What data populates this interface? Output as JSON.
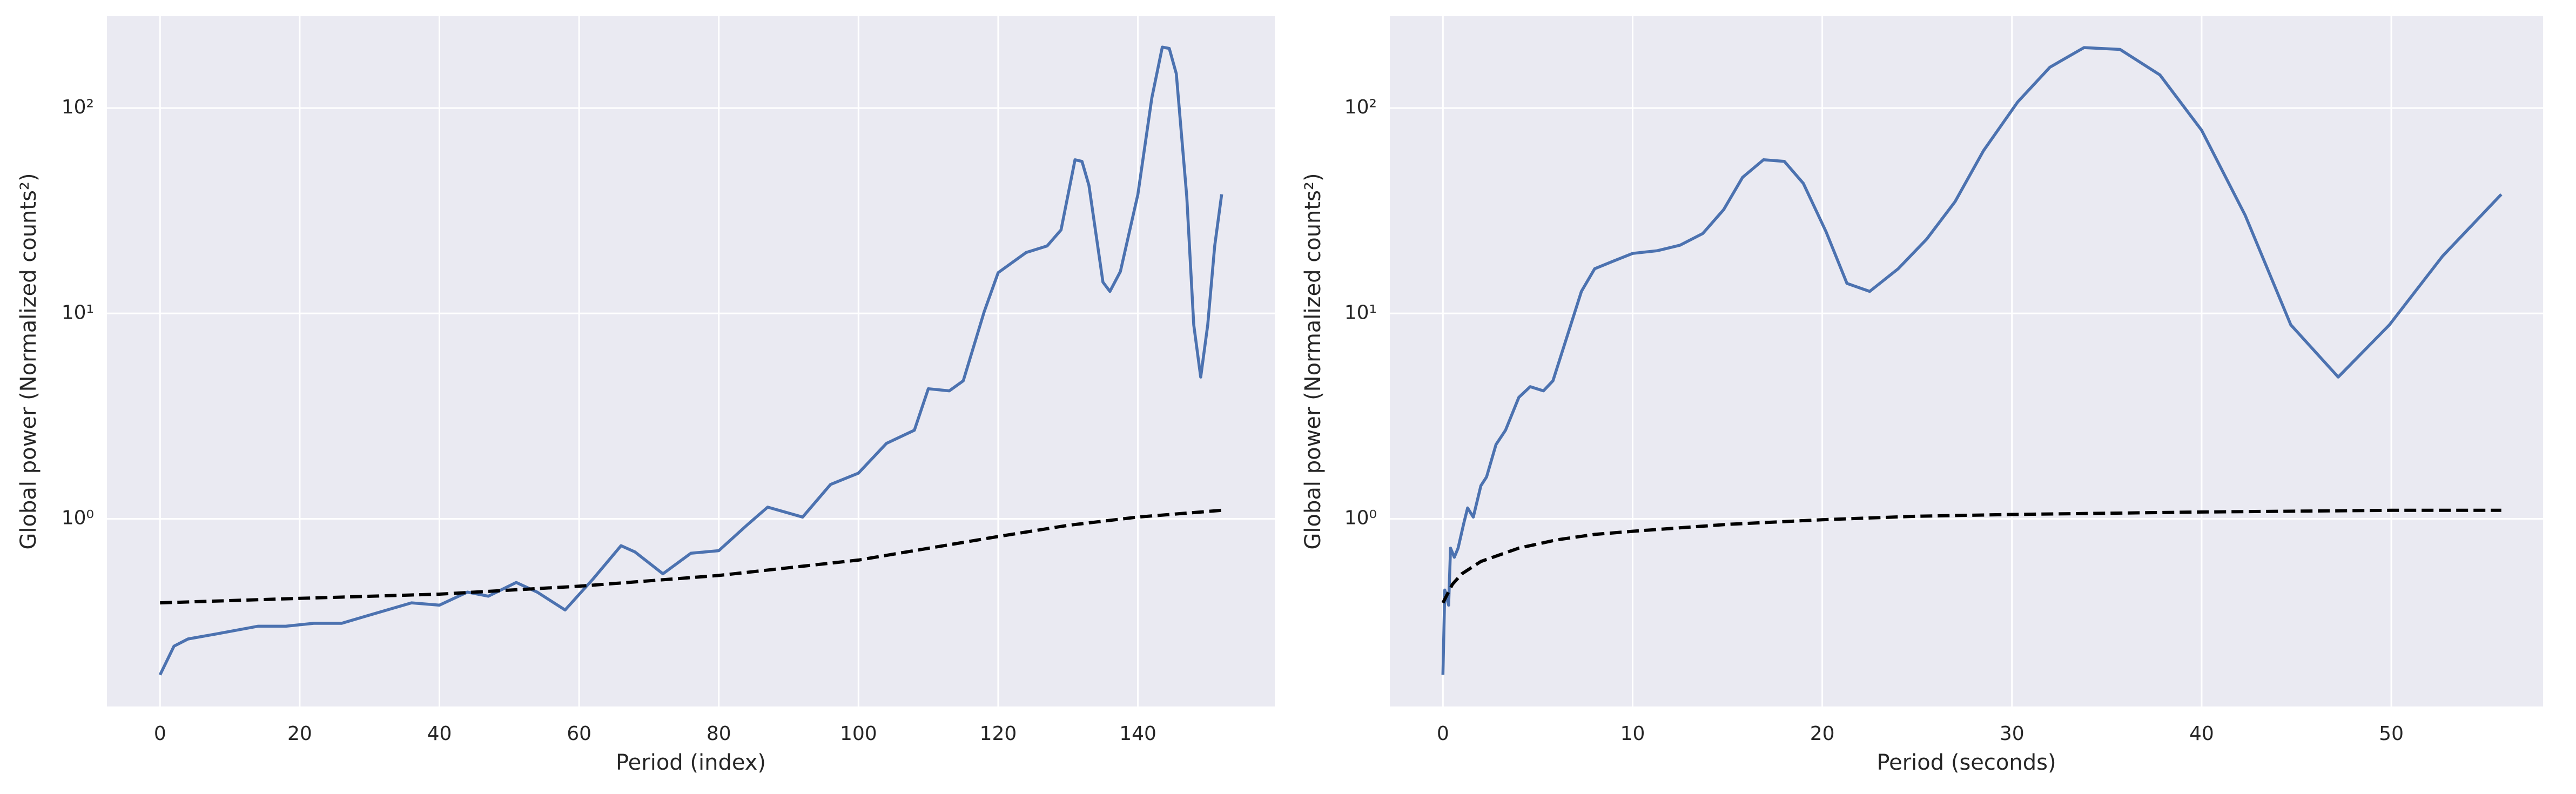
{
  "chart_data": [
    {
      "type": "line",
      "xlabel": "Period (index)",
      "ylabel": "Global power (Normalized counts²)",
      "yscale": "log",
      "grid": true,
      "background": "#eaeaf2",
      "xlim": [
        -7.6,
        159.6
      ],
      "xticks": [
        0,
        20,
        40,
        60,
        80,
        100,
        120,
        140
      ],
      "ylim": [
        0.122,
        280
      ],
      "yticks": [
        {
          "value": 1,
          "label": "10⁰"
        },
        {
          "value": 10,
          "label": "10¹"
        },
        {
          "value": 100,
          "label": "10²"
        }
      ],
      "series": [
        {
          "color": "#4c72b0",
          "dash": "solid",
          "x": [
            0,
            2,
            4,
            8,
            14,
            18,
            22,
            26,
            30,
            36,
            40,
            44,
            47,
            51,
            54,
            58,
            62,
            66,
            68,
            72,
            76,
            80,
            84,
            87,
            92,
            96,
            100,
            104,
            108,
            110,
            113,
            115,
            118,
            120,
            124,
            127,
            129,
            131,
            132,
            133,
            135,
            136,
            137.5,
            140,
            142,
            143.5,
            144.5,
            145.5,
            147,
            148,
            149,
            150,
            151,
            152
          ],
          "values": [
            0.174,
            0.24,
            0.26,
            0.275,
            0.3,
            0.3,
            0.31,
            0.31,
            0.34,
            0.39,
            0.38,
            0.44,
            0.42,
            0.49,
            0.44,
            0.36,
            0.51,
            0.74,
            0.69,
            0.54,
            0.68,
            0.7,
            0.93,
            1.14,
            1.02,
            1.47,
            1.67,
            2.33,
            2.7,
            4.3,
            4.2,
            4.7,
            10.2,
            15.8,
            19.8,
            21.3,
            25.5,
            56,
            55,
            42,
            14.2,
            12.8,
            16,
            38,
            112,
            198,
            195,
            147,
            37,
            8.8,
            4.9,
            8.8,
            21.3,
            38
          ]
        },
        {
          "color": "#000000",
          "dash": "dashed",
          "x": [
            0,
            20,
            40,
            60,
            80,
            100,
            120,
            130,
            140,
            152
          ],
          "values": [
            0.39,
            0.41,
            0.43,
            0.47,
            0.53,
            0.63,
            0.82,
            0.93,
            1.02,
            1.1
          ]
        }
      ]
    },
    {
      "type": "line",
      "xlabel": "Period (seconds)",
      "ylabel": "Global power (Normalized counts²)",
      "yscale": "log",
      "grid": true,
      "background": "#eaeaf2",
      "xlim": [
        -2.8,
        58.0
      ],
      "xticks": [
        0,
        10,
        20,
        30,
        40,
        50
      ],
      "ylim": [
        0.122,
        280
      ],
      "yticks": [
        {
          "value": 1,
          "label": "10⁰"
        },
        {
          "value": 10,
          "label": "10¹"
        },
        {
          "value": 100,
          "label": "10²"
        }
      ],
      "series": [
        {
          "color": "#4c72b0",
          "dash": "solid",
          "x": [
            0,
            0.1,
            0.3,
            0.4,
            0.6,
            0.8,
            1.1,
            1.3,
            1.6,
            2.0,
            2.3,
            2.8,
            3.3,
            4.0,
            4.6,
            5.3,
            5.8,
            6.5,
            7.3,
            8.0,
            9.0,
            10.0,
            11.3,
            12.5,
            13.7,
            14.8,
            15.8,
            16.9,
            18.0,
            19.0,
            20.2,
            21.3,
            22.5,
            24.0,
            25.5,
            27.0,
            28.5,
            30.3,
            32.0,
            33.8,
            35.7,
            37.8,
            40.0,
            42.3,
            44.7,
            47.2,
            49.9,
            52.7,
            55.8
          ],
          "values": [
            0.174,
            0.45,
            0.38,
            0.72,
            0.65,
            0.72,
            0.95,
            1.13,
            1.02,
            1.45,
            1.6,
            2.3,
            2.7,
            3.9,
            4.4,
            4.2,
            4.7,
            7.5,
            12.8,
            16.5,
            18,
            19.6,
            20.2,
            21.5,
            24.5,
            32,
            46,
            56,
            55,
            43,
            25,
            14,
            12.8,
            16.5,
            23,
            35,
            62,
            107,
            158,
            197,
            193,
            145,
            78,
            30,
            8.8,
            4.9,
            8.8,
            19,
            38
          ]
        },
        {
          "color": "#000000",
          "dash": "dashed",
          "x": [
            0,
            0.5,
            1,
            2,
            4,
            6,
            8,
            10,
            15,
            20,
            25,
            30,
            40,
            50,
            55.8
          ],
          "values": [
            0.39,
            0.48,
            0.54,
            0.62,
            0.72,
            0.79,
            0.84,
            0.87,
            0.94,
            0.99,
            1.03,
            1.05,
            1.08,
            1.1,
            1.1
          ]
        }
      ]
    }
  ]
}
